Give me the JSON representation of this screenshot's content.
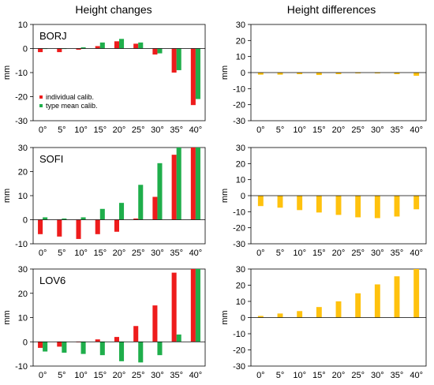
{
  "columns": {
    "left_title": "Height changes",
    "right_title": "Height differences"
  },
  "colors": {
    "individual": "#ee1c1c",
    "type_mean": "#1fae4b",
    "difference": "#ffc20e"
  },
  "legend": {
    "individual": "individual calib.",
    "type_mean": "type mean calib."
  },
  "chart_data": [
    {
      "type": "bar",
      "station": "BORJ",
      "categories": [
        "0°",
        "5°",
        "10°",
        "15°",
        "20°",
        "25°",
        "30°",
        "35°",
        "40°"
      ],
      "series": [
        {
          "name": "individual calib.",
          "values": [
            -1.5,
            -1.5,
            -0.5,
            1.0,
            3.0,
            2.0,
            -2.5,
            -10.0,
            -23.5
          ]
        },
        {
          "name": "type mean calib.",
          "values": [
            0,
            0,
            0.5,
            2.5,
            4.0,
            2.5,
            -2.0,
            -9.0,
            -21.0
          ]
        }
      ],
      "ylabel": "mm",
      "ylim": [
        -30,
        10
      ],
      "yticks": [
        -30,
        -20,
        -10,
        0,
        10
      ]
    },
    {
      "type": "bar",
      "station": "BORJ",
      "categories": [
        "0°",
        "5°",
        "10°",
        "15°",
        "20°",
        "25°",
        "30°",
        "35°",
        "40°"
      ],
      "series": [
        {
          "values": [
            -1.3,
            -1.3,
            -1.0,
            -1.5,
            -1.0,
            -0.5,
            -0.5,
            -1.0,
            -2.0
          ]
        }
      ],
      "ylabel": "mm",
      "ylim": [
        -30,
        30
      ],
      "yticks": [
        -30,
        -20,
        -10,
        0,
        10,
        20,
        30
      ]
    },
    {
      "type": "bar",
      "station": "SOFI",
      "categories": [
        "0°",
        "5°",
        "10°",
        "15°",
        "20°",
        "25°",
        "30°",
        "35°",
        "40°"
      ],
      "series": [
        {
          "name": "individual calib.",
          "values": [
            -6.0,
            -7.0,
            -8.0,
            -6.0,
            -5.0,
            0.5,
            9.5,
            27.0,
            30.0
          ]
        },
        {
          "name": "type mean calib.",
          "values": [
            1.0,
            0.5,
            1.0,
            4.5,
            7.0,
            14.5,
            23.5,
            30.0,
            30.0
          ]
        }
      ],
      "ylabel": "mm",
      "ylim": [
        -10,
        30
      ],
      "yticks": [
        -10,
        0,
        10,
        20,
        30
      ]
    },
    {
      "type": "bar",
      "station": "SOFI",
      "categories": [
        "0°",
        "5°",
        "10°",
        "15°",
        "20°",
        "25°",
        "30°",
        "35°",
        "40°"
      ],
      "series": [
        {
          "values": [
            -6.5,
            -7.5,
            -9.0,
            -10.5,
            -12.0,
            -13.5,
            -14.0,
            -13.0,
            -8.5
          ]
        }
      ],
      "ylabel": "mm",
      "ylim": [
        -30,
        30
      ],
      "yticks": [
        -30,
        -20,
        -10,
        0,
        10,
        20,
        30
      ]
    },
    {
      "type": "bar",
      "station": "LOV6",
      "categories": [
        "0°",
        "5°",
        "10°",
        "15°",
        "20°",
        "25°",
        "30°",
        "35°",
        "40°"
      ],
      "series": [
        {
          "name": "individual calib.",
          "values": [
            -2.5,
            -2.0,
            0.0,
            1.0,
            2.0,
            6.5,
            15.0,
            28.5,
            30.0
          ]
        },
        {
          "name": "type mean calib.",
          "values": [
            -4.0,
            -4.5,
            -5.0,
            -5.5,
            -8.0,
            -8.5,
            -5.5,
            3.0,
            30.0
          ]
        }
      ],
      "ylabel": "mm",
      "ylim": [
        -10,
        30
      ],
      "yticks": [
        -10,
        0,
        10,
        20,
        30
      ]
    },
    {
      "type": "bar",
      "station": "LOV6",
      "categories": [
        "0°",
        "5°",
        "10°",
        "15°",
        "20°",
        "25°",
        "30°",
        "35°",
        "40°"
      ],
      "series": [
        {
          "values": [
            1.0,
            2.5,
            4.0,
            6.5,
            10.0,
            15.0,
            20.5,
            25.5,
            30.0
          ]
        }
      ],
      "ylabel": "mm",
      "ylim": [
        -30,
        30
      ],
      "yticks": [
        -30,
        -20,
        -10,
        0,
        10,
        20,
        30
      ]
    }
  ]
}
